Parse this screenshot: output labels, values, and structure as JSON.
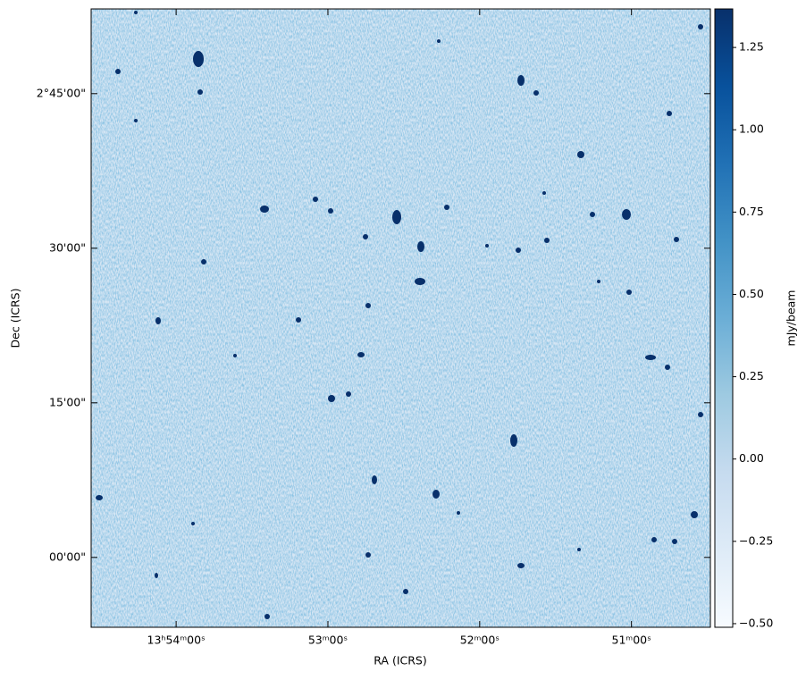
{
  "chart_data": {
    "type": "image",
    "xlabel": "RA (ICRS)",
    "ylabel": "Dec (ICRS)",
    "colorbar_label": "mJy/beam",
    "colormap": "Blues",
    "xlim": [
      208.64,
      207.62
    ],
    "xticks": [
      {
        "value": 208.5,
        "label": "13ʰ54ᵐ00ˢ"
      },
      {
        "value": 208.25,
        "label": "53ᵐ00ˢ"
      },
      {
        "value": 208.0,
        "label": "52ᵐ00ˢ"
      },
      {
        "value": 207.75,
        "label": "51ᵐ00ˢ"
      }
    ],
    "ylim": [
      1.887,
      2.887
    ],
    "yticks": [
      {
        "value": 2.75,
        "label": "2°45'00\""
      },
      {
        "value": 2.5,
        "label": "30'00\""
      },
      {
        "value": 2.25,
        "label": "15'00\""
      },
      {
        "value": 2.0,
        "label": "00'00\""
      }
    ],
    "clim": [
      -0.511,
      1.367
    ],
    "cticks": [
      {
        "value": 1.25,
        "label": "1.25"
      },
      {
        "value": 1.0,
        "label": "1.00"
      },
      {
        "value": 0.75,
        "label": "0.75"
      },
      {
        "value": 0.5,
        "label": "0.50"
      },
      {
        "value": 0.25,
        "label": "0.25"
      },
      {
        "value": 0.0,
        "label": "0.00"
      },
      {
        "value": -0.25,
        "label": "−0.25"
      },
      {
        "value": -0.5,
        "label": "−0.50"
      }
    ]
  }
}
